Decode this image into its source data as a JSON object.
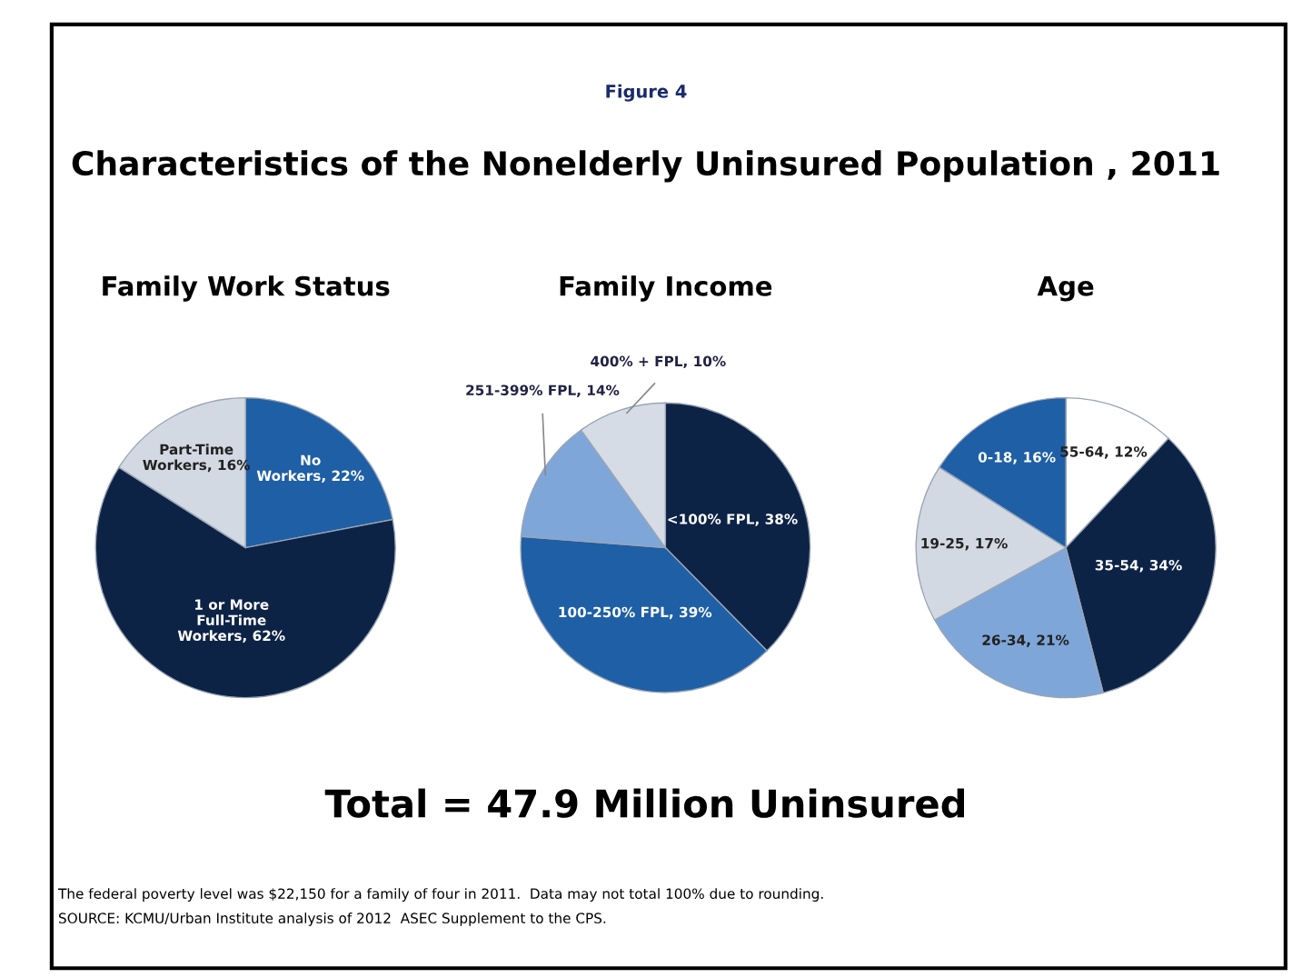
{
  "chart_data": [
    {
      "type": "other",
      "title": "Characteristics of the Nonelderly Uninsured Population , 2011",
      "subtitle": "Figure 4",
      "annotations": [
        "Total = 47.9 Million Uninsured",
        "The federal poverty level was $22,150 for a family of four in 2011.  Data may not total 100% due to rounding.",
        "SOURCE: KCMU/Urban Institute analysis of 2012  ASEC Supplement to the CPS."
      ]
    },
    {
      "type": "pie",
      "title": "Family Work Status",
      "categories": [
        "No\nWorkers",
        "1 or More\nFull-Time\nWorkers",
        "Part-Time\nWorkers"
      ],
      "values": [
        22,
        62,
        16
      ],
      "value_labels": [
        "22%",
        "62%",
        "16%"
      ],
      "colors": [
        "#1f5fa6",
        "#0d2346",
        "#d3d9e3"
      ]
    },
    {
      "type": "pie",
      "title": "Family Income",
      "categories": [
        "<100% FPL",
        "100-250% FPL",
        "251-399% FPL",
        "400% + FPL"
      ],
      "values": [
        38,
        39,
        14,
        10
      ],
      "value_labels": [
        "38%",
        "39%",
        "14%",
        "10%"
      ],
      "colors": [
        "#0d2346",
        "#1f5fa6",
        "#7ea6d8",
        "#d5dce6"
      ]
    },
    {
      "type": "pie",
      "title": "Age",
      "categories": [
        "55-64",
        "35-54",
        "26-34",
        "19-25",
        "0-18"
      ],
      "values": [
        12,
        34,
        21,
        17,
        16
      ],
      "value_labels": [
        "12%",
        "34%",
        "21%",
        "17%",
        "16%"
      ],
      "colors": [
        "#ffffff",
        "#0d2346",
        "#7ea6d8",
        "#d3d9e3",
        "#1f5fa6"
      ]
    }
  ]
}
